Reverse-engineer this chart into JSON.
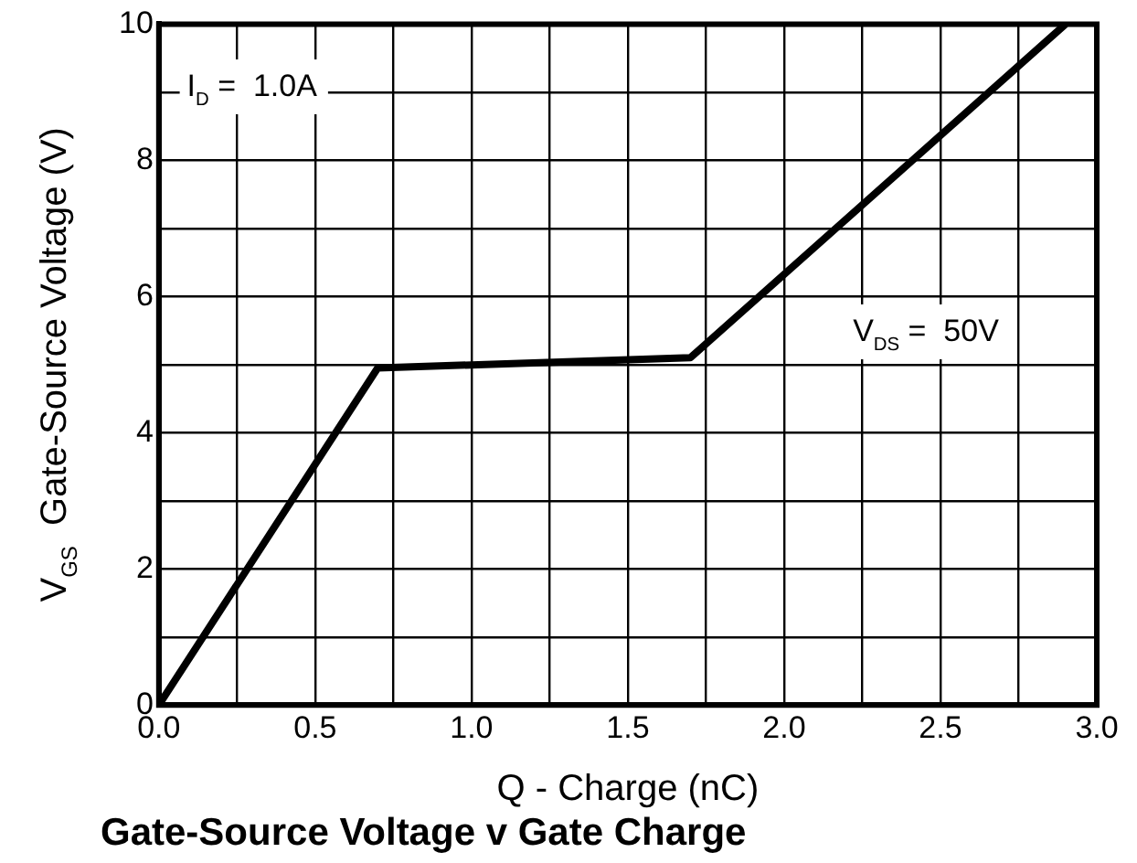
{
  "chart_data": {
    "type": "line",
    "title": "Gate-Source Voltage v Gate Charge",
    "xlabel": "Q - Charge (nC)",
    "ylabel": "V$_{GS}$  Gate-Source Voltage (V)",
    "annotations": [
      "I$_{D}$ =  1.0A",
      "V$_{DS}$ =  50V"
    ],
    "x": [
      0,
      0.7,
      1.7,
      2.9
    ],
    "series": [
      {
        "color": "#000000",
        "values": [
          0,
          4.95,
          5.1,
          10
        ]
      }
    ],
    "xlim": [
      0,
      3
    ],
    "ylim": [
      0,
      10
    ],
    "xticks": [
      {
        "value": 0,
        "label": "0.0"
      },
      {
        "value": 0.25,
        "label": null
      },
      {
        "value": 0.5,
        "label": "0.5"
      },
      {
        "value": 0.75,
        "label": null
      },
      {
        "value": 1,
        "label": "1.0"
      },
      {
        "value": 1.25,
        "label": null
      },
      {
        "value": 1.5,
        "label": "1.5"
      },
      {
        "value": 1.75,
        "label": null
      },
      {
        "value": 2,
        "label": "2.0"
      },
      {
        "value": 2.25,
        "label": null
      },
      {
        "value": 2.5,
        "label": "2.5"
      },
      {
        "value": 2.75,
        "label": null
      },
      {
        "value": 3,
        "label": "3.0"
      }
    ],
    "yticks": [
      0,
      {
        "value": 1,
        "label": null
      },
      2,
      {
        "value": 3,
        "label": null
      },
      4,
      {
        "value": 5,
        "label": null
      },
      6,
      {
        "value": 7,
        "label": null
      },
      8,
      {
        "value": 9,
        "label": null
      },
      10
    ],
    "grid": true,
    "marker": "none",
    "line_style": "solid"
  }
}
